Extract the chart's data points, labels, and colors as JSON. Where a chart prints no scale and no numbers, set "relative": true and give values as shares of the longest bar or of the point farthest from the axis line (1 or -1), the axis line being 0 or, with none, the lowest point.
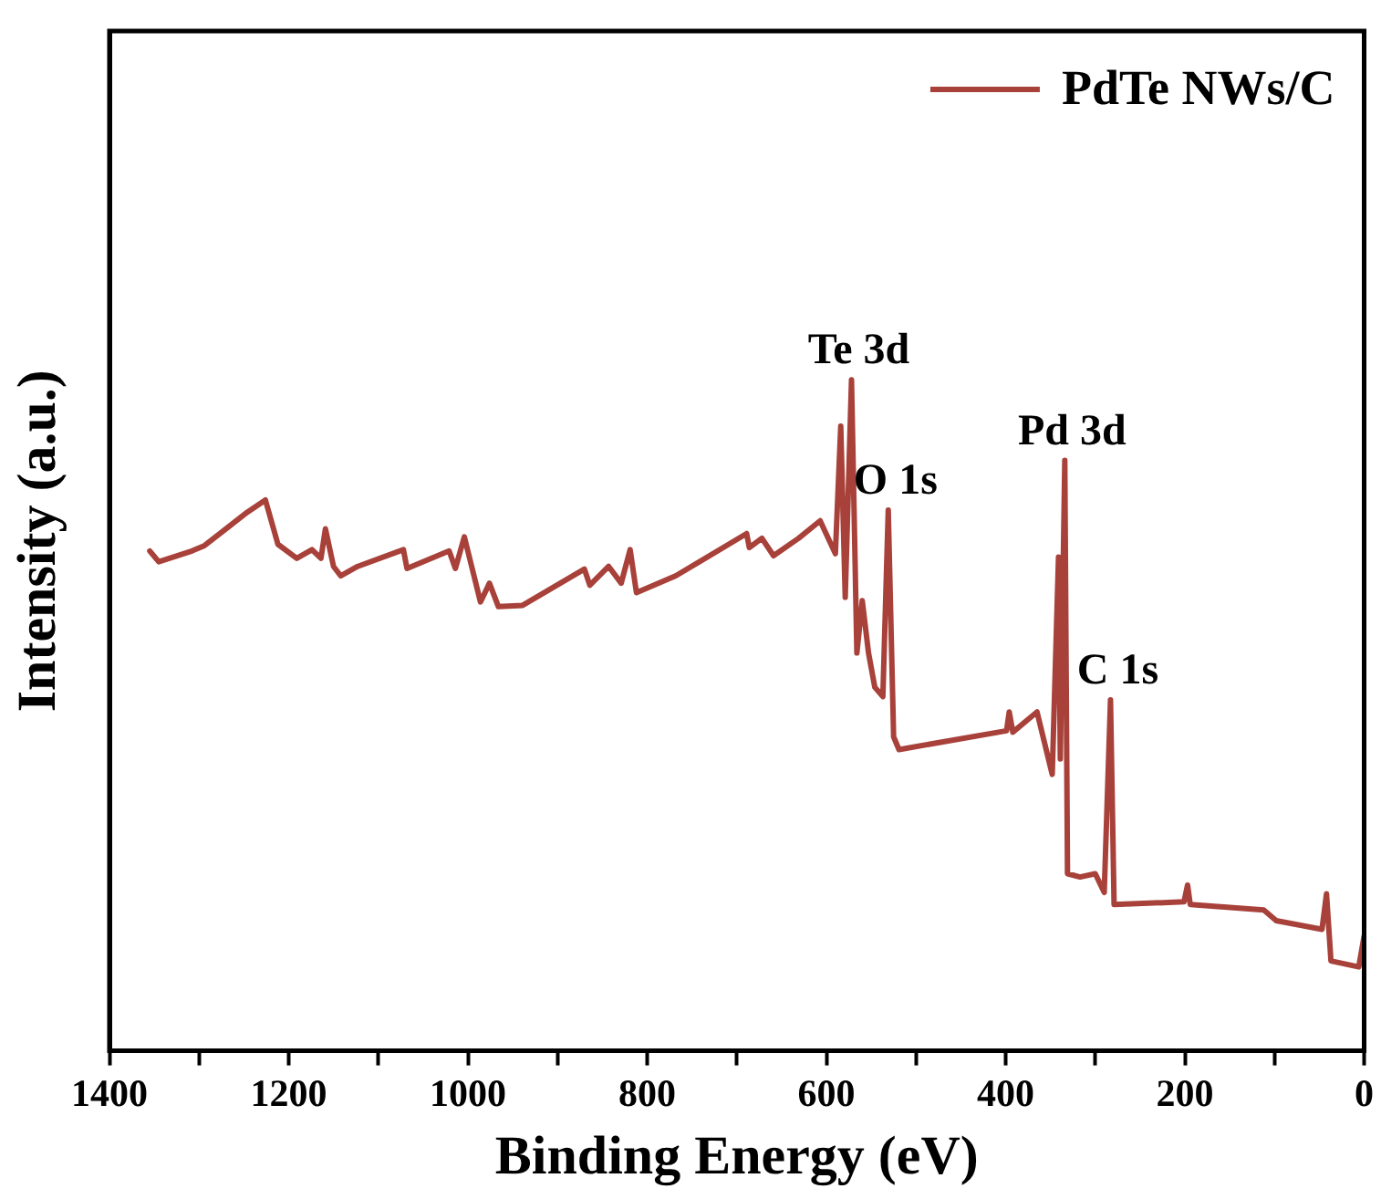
{
  "chart_data": {
    "type": "line",
    "relative": true,
    "xlabel": "Binding Energy (eV)",
    "ylabel": "Intensity (a.u.)",
    "xlim": [
      1400,
      0
    ],
    "xticks": [
      1400,
      {
        "value": 1300,
        "label": null
      },
      1200,
      {
        "value": 1100,
        "label": null
      },
      1000,
      {
        "value": 900,
        "label": null
      },
      800,
      {
        "value": 700,
        "label": null
      },
      600,
      {
        "value": 500,
        "label": null
      },
      400,
      {
        "value": 300,
        "label": null
      },
      200,
      {
        "value": 100,
        "label": null
      },
      0
    ],
    "legend": "top right",
    "grid": false,
    "marker": "none",
    "line_style": "solid",
    "annotations": [
      {
        "text": "Te 3d",
        "x": 572,
        "y": 1.0
      },
      {
        "text": "O 1s",
        "x": 531,
        "y": 0.806
      },
      {
        "text": "Pd 3d",
        "x": 334,
        "y": 0.88
      },
      {
        "text": "C 1s",
        "x": 283,
        "y": 0.523
      }
    ],
    "series": [
      {
        "name": "PdTe NWs/C",
        "color": "#a8413a",
        "x": [
          1355,
          1345,
          1308,
          1294,
          1246,
          1226,
          1212,
          1191,
          1174,
          1164,
          1159,
          1150,
          1142,
          1123,
          1072,
          1068,
          1021,
          1014,
          1004,
          986,
          976,
          966,
          939,
          870,
          864,
          843,
          829,
          819,
          812,
          768,
          689,
          686,
          672,
          659,
          631,
          607,
          590,
          584,
          579,
          572,
          566,
          560,
          553,
          546,
          537,
          531,
          525,
          519,
          399,
          396,
          392,
          365,
          348,
          341,
          339,
          334,
          331,
          317,
          300,
          290,
          283,
          279,
          201,
          197,
          194,
          112,
          98,
          47,
          42,
          37,
          6,
          0
        ],
        "values": [
          0.745,
          0.729,
          0.745,
          0.753,
          0.803,
          0.821,
          0.755,
          0.734,
          0.747,
          0.734,
          0.778,
          0.722,
          0.708,
          0.722,
          0.747,
          0.719,
          0.745,
          0.719,
          0.766,
          0.669,
          0.697,
          0.662,
          0.664,
          0.718,
          0.694,
          0.722,
          0.697,
          0.747,
          0.683,
          0.708,
          0.771,
          0.75,
          0.764,
          0.738,
          0.764,
          0.79,
          0.741,
          0.931,
          0.676,
          1.0,
          0.593,
          0.671,
          0.593,
          0.542,
          0.528,
          0.806,
          0.468,
          0.449,
          0.477,
          0.505,
          0.475,
          0.505,
          0.412,
          0.736,
          0.435,
          0.88,
          0.264,
          0.259,
          0.264,
          0.236,
          0.523,
          0.218,
          0.222,
          0.247,
          0.218,
          0.21,
          0.194,
          0.181,
          0.234,
          0.134,
          0.125,
          0.171
        ]
      }
    ]
  }
}
